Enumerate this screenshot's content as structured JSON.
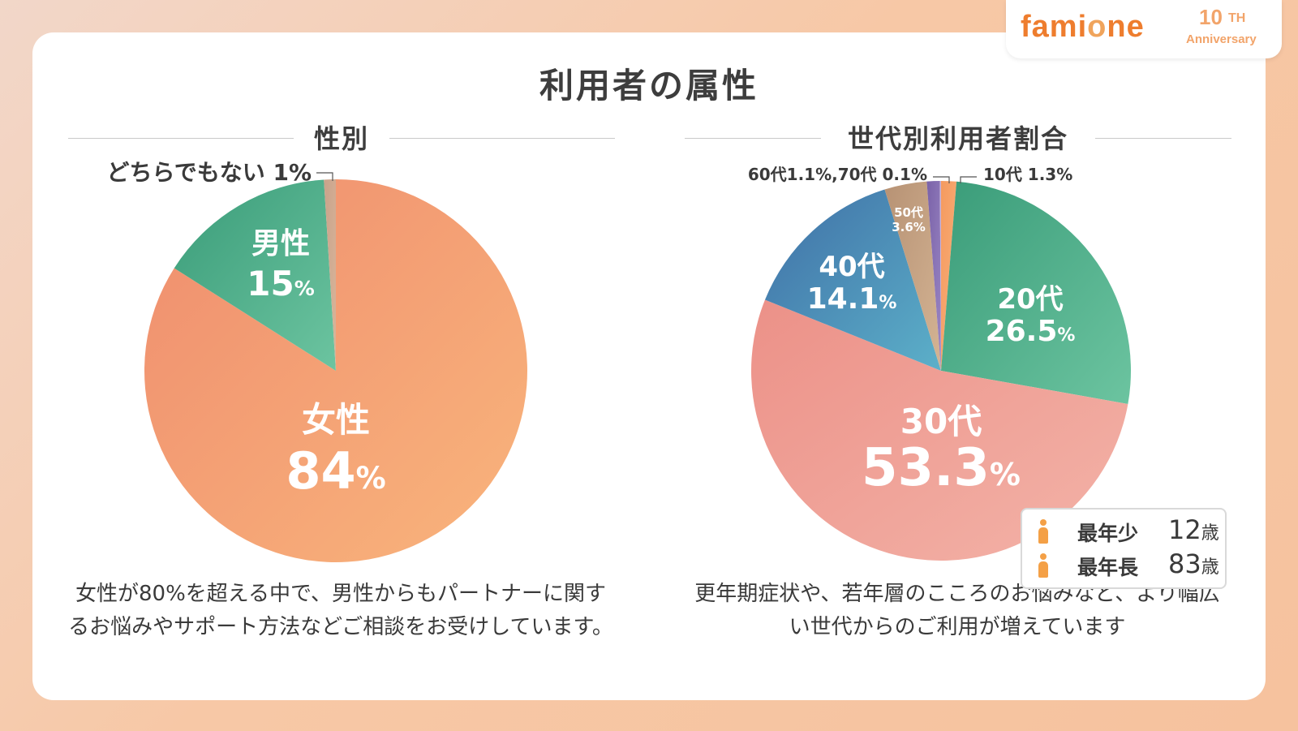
{
  "brand": {
    "name_part1": "fami",
    "name_part2": "o",
    "name_part3": "ne",
    "anniv_number": "10",
    "anniv_suffix": "TH",
    "anniv_word": "Anniversary",
    "color": "#ee7d2e"
  },
  "title": "利用者の属性",
  "gender_section": {
    "title": "性別",
    "caption_line1": "女性が80%を超える中で、男性からもパートナーに関す",
    "caption_line2": "るお悩みやサポート方法などご相談をお受けしています。"
  },
  "age_section": {
    "title": "世代別利用者割合",
    "caption_line1": "更年期症状や、若年層のこころのお悩みなど、より幅広",
    "caption_line2": "い世代からのご利用が増えています",
    "youngest_label": "最年少",
    "youngest_value": "12",
    "oldest_label": "最年長",
    "oldest_value": "83",
    "age_unit": "歳"
  },
  "chart_data": [
    {
      "type": "pie",
      "title": "性別",
      "slices": [
        {
          "name": "女性",
          "value": 84,
          "label": "女性",
          "pct": "84",
          "color_a": "#ef8d6e",
          "color_b": "#f9b57c"
        },
        {
          "name": "男性",
          "value": 15,
          "label": "男性",
          "pct": "15",
          "color_a": "#3a9c79",
          "color_b": "#6cc4a0"
        },
        {
          "name": "どちらでもない",
          "value": 1,
          "label": "どちらでもない 1%",
          "pct": "1",
          "color_a": "#c9a28a",
          "color_b": "#d8b59a"
        }
      ]
    },
    {
      "type": "pie",
      "title": "世代別利用者割合",
      "slices": [
        {
          "name": "10代",
          "value": 1.3,
          "label": "10代 1.3%",
          "color_a": "#f59a5f",
          "color_b": "#f7b07a"
        },
        {
          "name": "20代",
          "value": 26.5,
          "label": "20代",
          "pct": "26.5",
          "color_a": "#3a9c79",
          "color_b": "#6cc4a0"
        },
        {
          "name": "30代",
          "value": 53.3,
          "label": "30代",
          "pct": "53.3",
          "color_a": "#ec9188",
          "color_b": "#f3b3a8"
        },
        {
          "name": "40代",
          "value": 14.1,
          "label": "40代",
          "pct": "14.1",
          "color_a": "#3f6fa6",
          "color_b": "#5cb0c9"
        },
        {
          "name": "50代",
          "value": 3.6,
          "label": "50代",
          "pct": "3.6%",
          "color_a": "#b79274",
          "color_b": "#d4b494"
        },
        {
          "name": "60代",
          "value": 1.1,
          "label": "60代1.1%,70代 0.1%",
          "color_a": "#7a62a8",
          "color_b": "#9a86c4"
        },
        {
          "name": "70代",
          "value": 0.1,
          "label": "",
          "color_a": "#c9b4d6",
          "color_b": "#c9b4d6"
        }
      ]
    }
  ]
}
